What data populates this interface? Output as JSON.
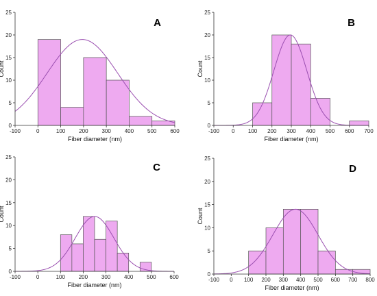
{
  "colors": {
    "bar_fill": "#eeaaf0",
    "bar_stroke": "#555555",
    "curve": "#9a4fb0"
  },
  "chart_data": [
    {
      "type": "bar",
      "panel_label": "A",
      "xlabel": "Fiber diameter (nm)",
      "ylabel": "Count",
      "xlim": [
        -100,
        600
      ],
      "ylim": [
        0,
        25
      ],
      "xticks": [
        -100,
        0,
        100,
        200,
        300,
        400,
        500,
        600
      ],
      "yticks": [
        0,
        5,
        10,
        15,
        20,
        25
      ],
      "bins": [
        [
          0,
          100
        ],
        [
          100,
          200
        ],
        [
          200,
          300
        ],
        [
          300,
          400
        ],
        [
          400,
          500
        ],
        [
          500,
          600
        ]
      ],
      "values": [
        19,
        4,
        15,
        10,
        2,
        1
      ],
      "fit": {
        "mean": 195,
        "sd": 155,
        "peak": 19
      }
    },
    {
      "type": "bar",
      "panel_label": "B",
      "xlabel": "Fiber diameter (nm)",
      "ylabel": "Count",
      "xlim": [
        -100,
        700
      ],
      "ylim": [
        0,
        25
      ],
      "xticks": [
        -100,
        0,
        100,
        200,
        300,
        400,
        500,
        600,
        700
      ],
      "yticks": [
        0,
        5,
        10,
        15,
        20,
        25
      ],
      "bins": [
        [
          100,
          200
        ],
        [
          200,
          300
        ],
        [
          300,
          400
        ],
        [
          400,
          500
        ],
        [
          500,
          600
        ],
        [
          600,
          700
        ]
      ],
      "values": [
        5,
        20,
        18,
        6,
        0,
        1
      ],
      "fit": {
        "mean": 295,
        "sd": 85,
        "peak": 20
      }
    },
    {
      "type": "bar",
      "panel_label": "C",
      "xlabel": "Fiber diameter (nm)",
      "ylabel": "Count",
      "xlim": [
        -100,
        600
      ],
      "ylim": [
        0,
        25
      ],
      "xticks": [
        -100,
        0,
        100,
        200,
        300,
        400,
        500,
        600
      ],
      "yticks": [
        0,
        5,
        10,
        15,
        20,
        25
      ],
      "bins": [
        [
          100,
          150
        ],
        [
          150,
          200
        ],
        [
          200,
          250
        ],
        [
          250,
          300
        ],
        [
          300,
          350
        ],
        [
          350,
          400
        ],
        [
          400,
          450
        ],
        [
          450,
          500
        ]
      ],
      "values": [
        8,
        6,
        12,
        7,
        11,
        4,
        0,
        2
      ],
      "fit": {
        "mean": 250,
        "sd": 85,
        "peak": 12
      }
    },
    {
      "type": "bar",
      "panel_label": "D",
      "xlabel": "Fiber diameter (nm)",
      "ylabel": "Count",
      "xlim": [
        -100,
        800
      ],
      "ylim": [
        0,
        25
      ],
      "xticks": [
        -100,
        0,
        100,
        200,
        300,
        400,
        500,
        600,
        700,
        800
      ],
      "yticks": [
        0,
        5,
        10,
        15,
        20,
        25
      ],
      "bins": [
        [
          100,
          200
        ],
        [
          200,
          300
        ],
        [
          300,
          400
        ],
        [
          400,
          500
        ],
        [
          500,
          600
        ],
        [
          600,
          700
        ],
        [
          700,
          800
        ]
      ],
      "values": [
        5,
        10,
        14,
        14,
        5,
        1,
        1
      ],
      "fit": {
        "mean": 370,
        "sd": 130,
        "peak": 14
      }
    }
  ]
}
